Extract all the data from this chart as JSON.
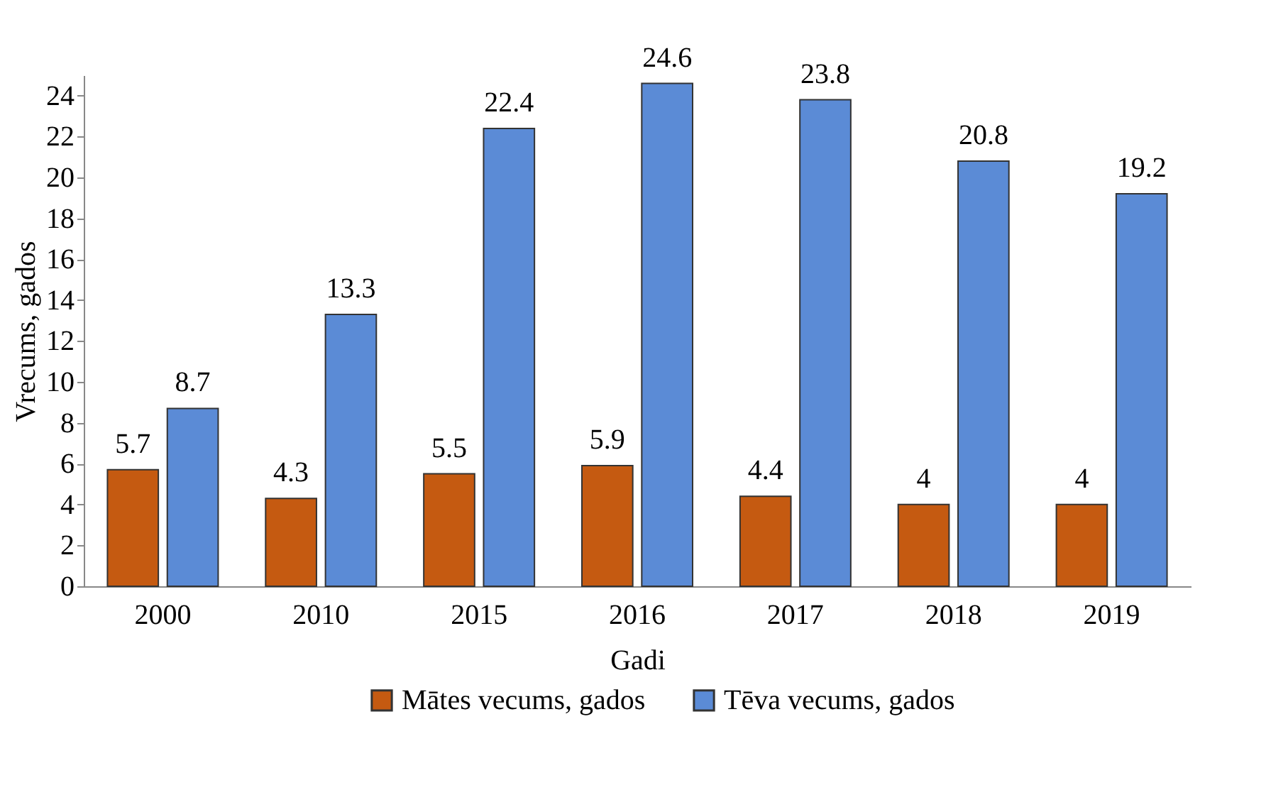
{
  "chart_data": {
    "type": "bar",
    "xlabel": "Gadi",
    "ylabel": "Vrecums, gados",
    "categories": [
      "2000",
      "2010",
      "2015",
      "2016",
      "2017",
      "2018",
      "2019"
    ],
    "series": [
      {
        "name": "Mātes vecums, gados",
        "color": "#c55a11",
        "values": [
          5.7,
          4.3,
          5.5,
          5.9,
          4.4,
          4,
          4
        ]
      },
      {
        "name": "Tēva vecums, gados",
        "color": "#5b8bd6",
        "values": [
          8.7,
          13.3,
          22.4,
          24.6,
          23.8,
          20.8,
          19.2
        ]
      }
    ],
    "ylim": [
      0,
      25
    ],
    "yticks": [
      0,
      2,
      4,
      6,
      8,
      10,
      12,
      14,
      16,
      18,
      20,
      22,
      24
    ],
    "data_labels": true,
    "legend": "bottom",
    "grid": false
  }
}
